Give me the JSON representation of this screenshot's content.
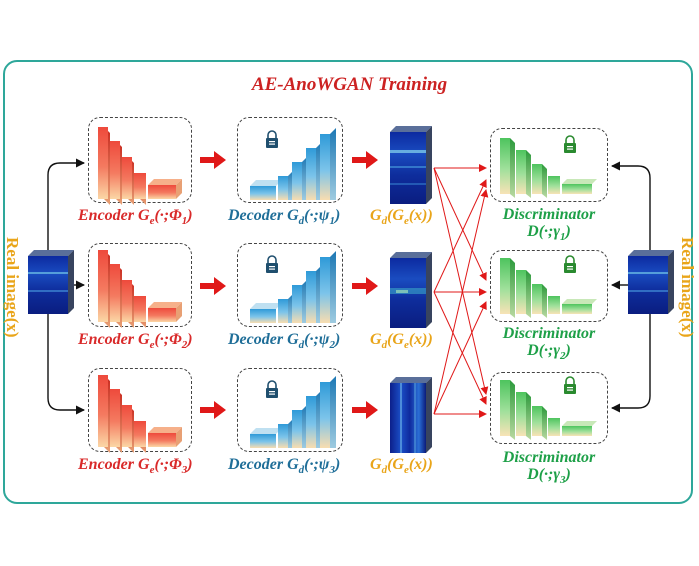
{
  "title": "AE-AnoWGAN Training",
  "side_label": "Real image(x)",
  "rows": [
    {
      "encoder": "Encoder G",
      "enc_sub": "e",
      "enc_args": "(·;Φ",
      "enc_idx": "1",
      "decoder": "Decoder G",
      "dec_sub": "d",
      "dec_args": "(·;ψ",
      "dec_idx": "1",
      "gd": "G",
      "gd_sub1": "d",
      "gd_mid": "(G",
      "gd_sub2": "e",
      "gd_end": "(x))"
    },
    {
      "encoder": "Encoder G",
      "enc_sub": "e",
      "enc_args": "(·;Φ",
      "enc_idx": "2",
      "decoder": "Decoder G",
      "dec_sub": "d",
      "dec_args": "(·;ψ",
      "dec_idx": "2",
      "gd": "G",
      "gd_sub1": "d",
      "gd_mid": "(G",
      "gd_sub2": "e",
      "gd_end": "(x))"
    },
    {
      "encoder": "Encoder G",
      "enc_sub": "e",
      "enc_args": "(·;Φ",
      "enc_idx": "3",
      "decoder": "Decoder G",
      "dec_sub": "d",
      "dec_args": "(·;ψ",
      "dec_idx": "3",
      "gd": "G",
      "gd_sub1": "d",
      "gd_mid": "(G",
      "gd_sub2": "e",
      "gd_end": "(x))"
    }
  ],
  "discriminators": [
    {
      "name": "Discriminator",
      "func": "D(·;γ",
      "idx": "1"
    },
    {
      "name": "Discriminator",
      "func": "D(·;γ",
      "idx": "2"
    },
    {
      "name": "Discriminator",
      "func": "D(·;γ",
      "idx": "3"
    }
  ],
  "colors": {
    "frame": "#2ea79a",
    "encoder": "#d92a2a",
    "decoder": "#1f6e98",
    "generated": "#e9a51a",
    "discriminator": "#1ea048",
    "arrow": "#e01818"
  }
}
